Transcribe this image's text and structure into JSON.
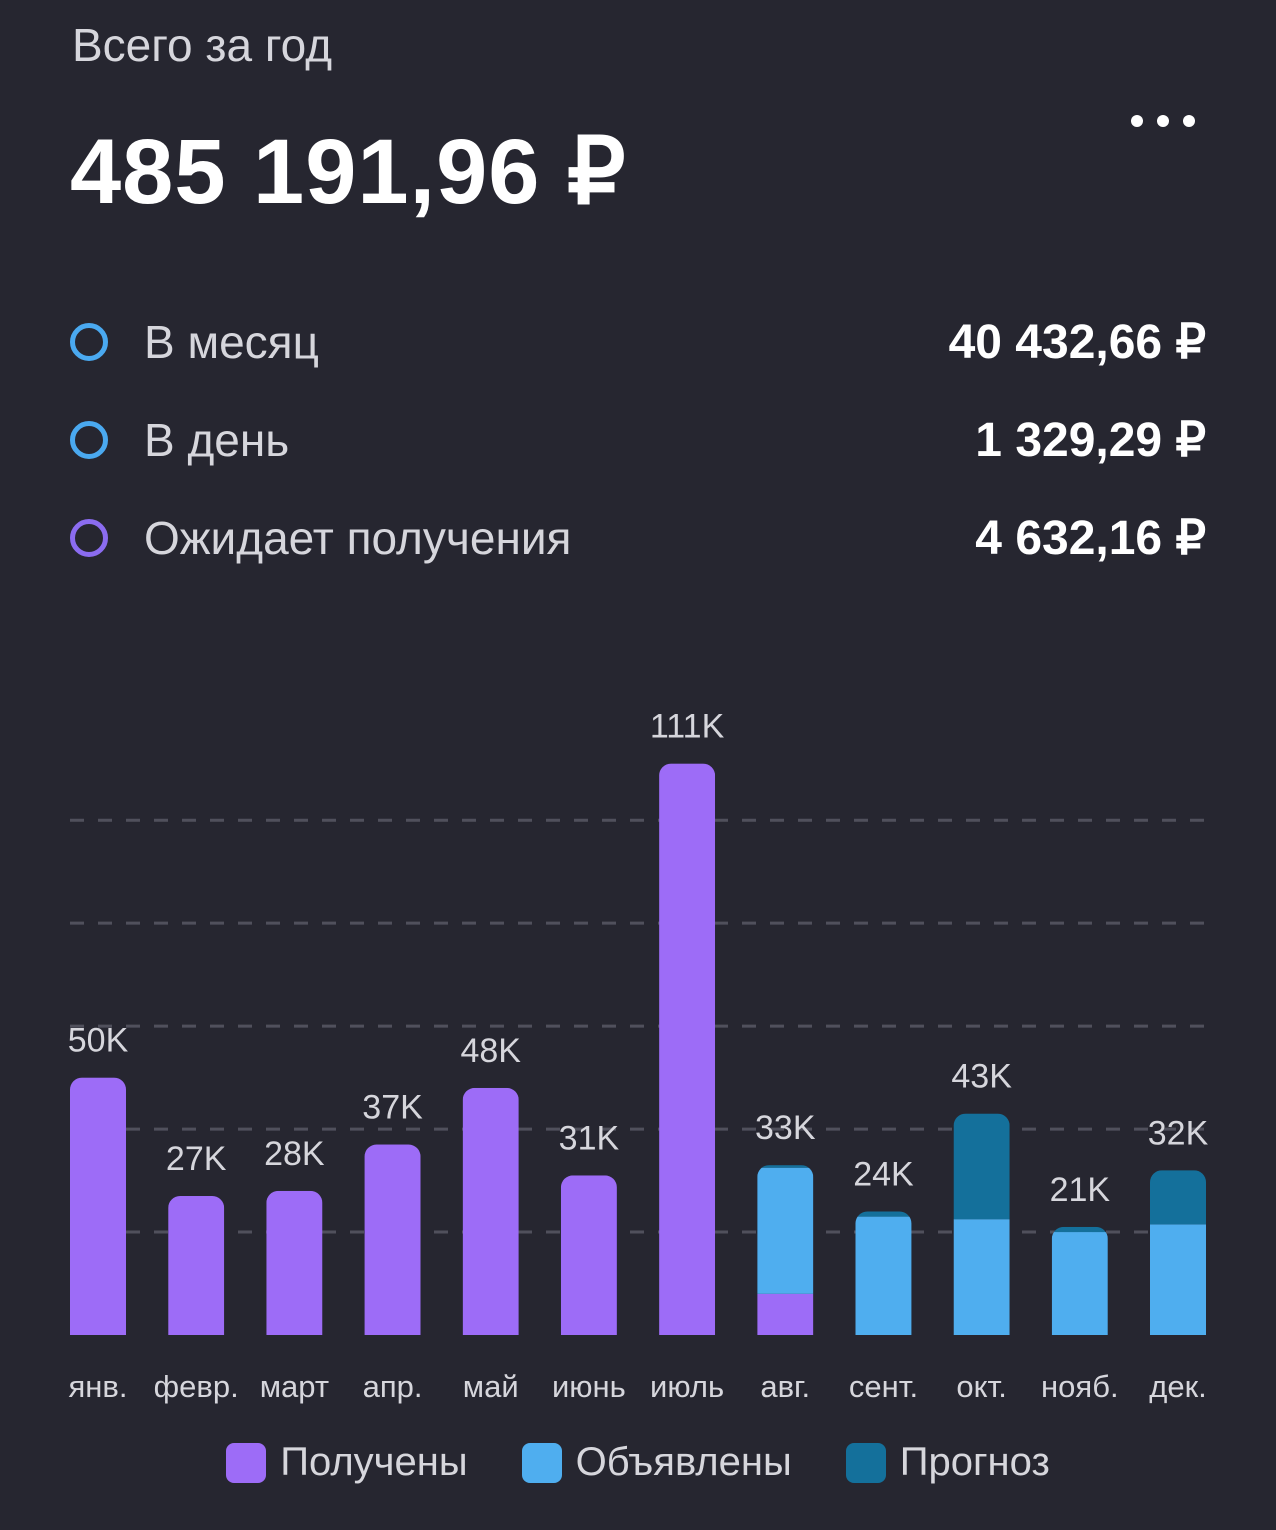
{
  "header": {
    "title": "Всего за год",
    "total": "485 191,96 ₽"
  },
  "stats": [
    {
      "label": "В месяц",
      "value": "40 432,66 ₽",
      "color": "#4aa9f0"
    },
    {
      "label": "В день",
      "value": "1 329,29 ₽",
      "color": "#4aa9f0"
    },
    {
      "label": "Ожидает получения",
      "value": "4 632,16 ₽",
      "color": "#8b6cf0"
    }
  ],
  "colors": {
    "received": "#9d6cf7",
    "declared": "#4faeef",
    "forecast": "#14709b",
    "grid": "#50505c",
    "label": "#d6d6dc"
  },
  "chart_data": {
    "type": "bar",
    "stacked": true,
    "categories": [
      "янв.",
      "февр.",
      "март",
      "апр.",
      "май",
      "июнь",
      "июль",
      "авг.",
      "сент.",
      "окт.",
      "нояб.",
      "дек."
    ],
    "data_labels": [
      "50K",
      "27K",
      "28K",
      "37K",
      "48K",
      "31K",
      "111K",
      "33K",
      "24K",
      "43K",
      "21K",
      "32K"
    ],
    "series": [
      {
        "name": "Получены",
        "values": [
          50000,
          27000,
          28000,
          37000,
          48000,
          31000,
          111000,
          8000,
          0,
          0,
          0,
          0
        ]
      },
      {
        "name": "Объявлены",
        "values": [
          0,
          0,
          0,
          0,
          0,
          0,
          0,
          24500,
          23000,
          22500,
          20000,
          21500
        ]
      },
      {
        "name": "Прогноз",
        "values": [
          0,
          0,
          0,
          0,
          0,
          0,
          0,
          500,
          1000,
          20500,
          1000,
          10500
        ]
      }
    ],
    "ylim": [
      0,
      115000
    ],
    "grid": true,
    "legend_position": "bottom"
  }
}
